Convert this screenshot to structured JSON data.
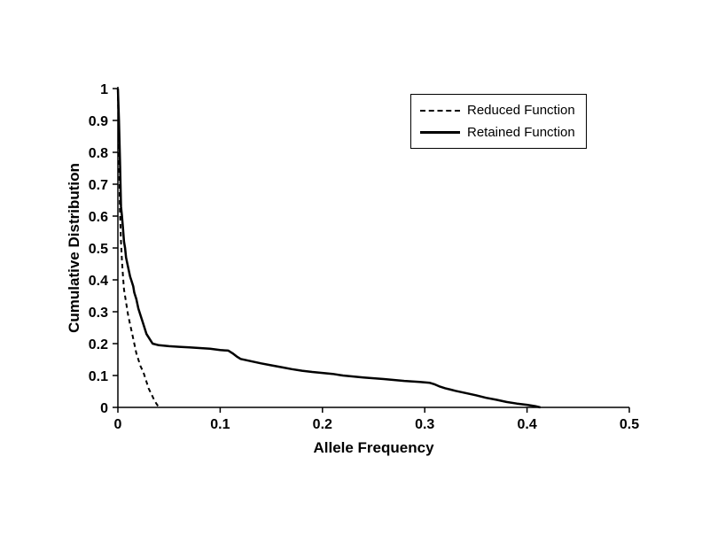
{
  "chart_data": {
    "type": "line",
    "title": "",
    "xlabel": "Allele Frequency",
    "ylabel": "Cumulative Distribution",
    "xlim": [
      0,
      0.5
    ],
    "ylim": [
      0,
      1
    ],
    "x_ticks": [
      0,
      0.1,
      0.2,
      0.3,
      0.4,
      0.5
    ],
    "y_ticks": [
      0,
      0.1,
      0.2,
      0.3,
      0.4,
      0.5,
      0.6,
      0.7,
      0.8,
      0.9,
      1
    ],
    "grid": false,
    "legend_position": "top-right",
    "axis_color": "#000000",
    "background_color": "#ffffff",
    "series": [
      {
        "name": "Retained Function",
        "style": "solid",
        "color": "#000000",
        "points": [
          [
            0.0,
            1.0
          ],
          [
            0.001,
            0.9
          ],
          [
            0.002,
            0.78
          ],
          [
            0.003,
            0.63
          ],
          [
            0.004,
            0.6
          ],
          [
            0.005,
            0.56
          ],
          [
            0.006,
            0.52
          ],
          [
            0.007,
            0.5
          ],
          [
            0.008,
            0.47
          ],
          [
            0.01,
            0.44
          ],
          [
            0.012,
            0.41
          ],
          [
            0.013,
            0.4
          ],
          [
            0.015,
            0.38
          ],
          [
            0.016,
            0.36
          ],
          [
            0.018,
            0.34
          ],
          [
            0.02,
            0.31
          ],
          [
            0.022,
            0.29
          ],
          [
            0.024,
            0.27
          ],
          [
            0.026,
            0.25
          ],
          [
            0.028,
            0.23
          ],
          [
            0.03,
            0.22
          ],
          [
            0.032,
            0.21
          ],
          [
            0.034,
            0.2
          ],
          [
            0.04,
            0.195
          ],
          [
            0.05,
            0.192
          ],
          [
            0.06,
            0.19
          ],
          [
            0.07,
            0.188
          ],
          [
            0.08,
            0.186
          ],
          [
            0.09,
            0.184
          ],
          [
            0.1,
            0.18
          ],
          [
            0.108,
            0.178
          ],
          [
            0.112,
            0.17
          ],
          [
            0.116,
            0.16
          ],
          [
            0.12,
            0.152
          ],
          [
            0.13,
            0.145
          ],
          [
            0.14,
            0.138
          ],
          [
            0.15,
            0.132
          ],
          [
            0.16,
            0.126
          ],
          [
            0.17,
            0.12
          ],
          [
            0.18,
            0.115
          ],
          [
            0.19,
            0.111
          ],
          [
            0.2,
            0.108
          ],
          [
            0.21,
            0.105
          ],
          [
            0.22,
            0.1
          ],
          [
            0.24,
            0.094
          ],
          [
            0.26,
            0.089
          ],
          [
            0.28,
            0.083
          ],
          [
            0.295,
            0.08
          ],
          [
            0.305,
            0.077
          ],
          [
            0.31,
            0.072
          ],
          [
            0.315,
            0.065
          ],
          [
            0.32,
            0.06
          ],
          [
            0.33,
            0.052
          ],
          [
            0.34,
            0.045
          ],
          [
            0.35,
            0.038
          ],
          [
            0.36,
            0.03
          ],
          [
            0.37,
            0.024
          ],
          [
            0.38,
            0.017
          ],
          [
            0.39,
            0.012
          ],
          [
            0.4,
            0.008
          ],
          [
            0.408,
            0.004
          ],
          [
            0.413,
            0.0
          ]
        ]
      },
      {
        "name": "Reduced Function",
        "style": "dashed",
        "color": "#000000",
        "points": [
          [
            0.0,
            1.0
          ],
          [
            0.001,
            0.8
          ],
          [
            0.002,
            0.62
          ],
          [
            0.003,
            0.52
          ],
          [
            0.004,
            0.46
          ],
          [
            0.005,
            0.41
          ],
          [
            0.006,
            0.37
          ],
          [
            0.008,
            0.33
          ],
          [
            0.01,
            0.29
          ],
          [
            0.012,
            0.26
          ],
          [
            0.014,
            0.23
          ],
          [
            0.016,
            0.2
          ],
          [
            0.018,
            0.17
          ],
          [
            0.02,
            0.15
          ],
          [
            0.022,
            0.13
          ],
          [
            0.025,
            0.11
          ],
          [
            0.028,
            0.08
          ],
          [
            0.03,
            0.06
          ],
          [
            0.033,
            0.04
          ],
          [
            0.036,
            0.02
          ],
          [
            0.038,
            0.01
          ],
          [
            0.04,
            0.0
          ]
        ]
      }
    ],
    "legend_items": [
      {
        "label": "Reduced Function",
        "style": "dashed"
      },
      {
        "label": "Retained Function",
        "style": "solid"
      }
    ]
  }
}
